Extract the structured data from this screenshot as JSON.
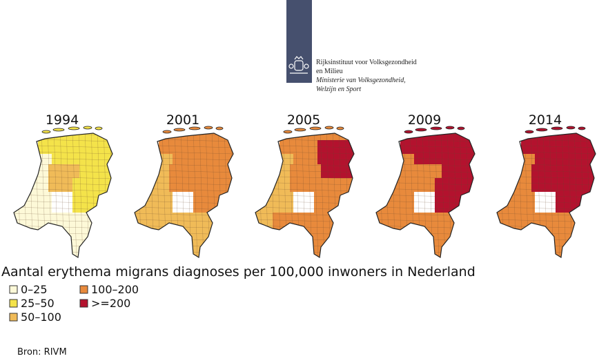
{
  "header": {
    "logo_lines": [
      "Rijksinstituut voor Volksgezondheid",
      "en Milieu",
      "Ministerie van Volksgezondheid,",
      "Welzijn en Sport"
    ]
  },
  "maps": [
    {
      "year": "1994"
    },
    {
      "year": "2001"
    },
    {
      "year": "2005"
    },
    {
      "year": "2009"
    },
    {
      "year": "2014"
    }
  ],
  "title": "Aantal erythema migrans diagnoses per 100,000 inwoners in Nederland",
  "legend": [
    {
      "label": "0–25",
      "color": "#fdf9d8"
    },
    {
      "label": "25–50",
      "color": "#f4e34a"
    },
    {
      "label": "50–100",
      "color": "#f0bb58"
    },
    {
      "label": "100–200",
      "color": "#e88a3c"
    },
    {
      "label": ">=200",
      "color": "#b3122e"
    }
  ],
  "source": "Bron: RIVM"
}
